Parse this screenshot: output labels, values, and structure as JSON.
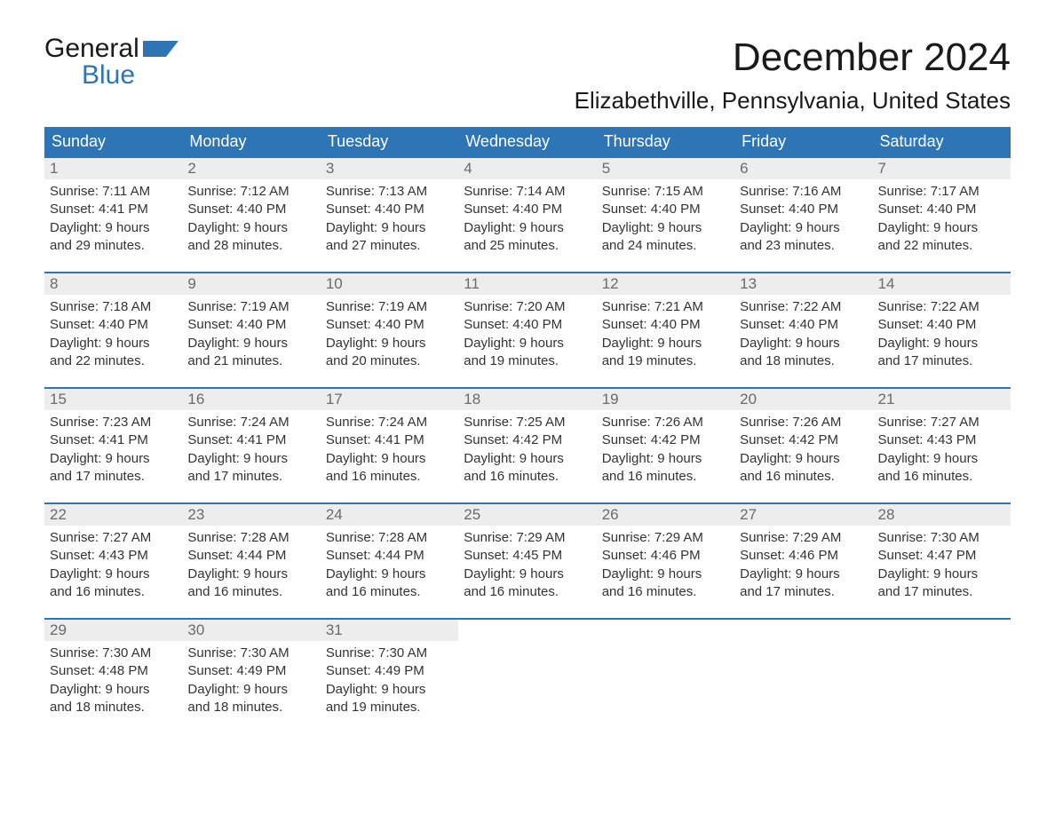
{
  "brand": {
    "word1": "General",
    "word2": "Blue",
    "flag_color": "#2e75b6"
  },
  "title": "December 2024",
  "location": "Elizabethville, Pennsylvania, United States",
  "colors": {
    "header_bg": "#2e75b6",
    "header_text": "#ffffff",
    "week_border": "#2e75b6",
    "daynum_bg": "#ededed",
    "daynum_text": "#6a6a6a",
    "body_text": "#333333",
    "page_bg": "#ffffff"
  },
  "typography": {
    "title_fontsize": 44,
    "location_fontsize": 26,
    "weekday_fontsize": 18,
    "daynum_fontsize": 17,
    "body_fontsize": 15
  },
  "weekdays": [
    "Sunday",
    "Monday",
    "Tuesday",
    "Wednesday",
    "Thursday",
    "Friday",
    "Saturday"
  ],
  "weeks": [
    [
      {
        "n": "1",
        "sunrise": "Sunrise: 7:11 AM",
        "sunset": "Sunset: 4:41 PM",
        "d1": "Daylight: 9 hours",
        "d2": "and 29 minutes."
      },
      {
        "n": "2",
        "sunrise": "Sunrise: 7:12 AM",
        "sunset": "Sunset: 4:40 PM",
        "d1": "Daylight: 9 hours",
        "d2": "and 28 minutes."
      },
      {
        "n": "3",
        "sunrise": "Sunrise: 7:13 AM",
        "sunset": "Sunset: 4:40 PM",
        "d1": "Daylight: 9 hours",
        "d2": "and 27 minutes."
      },
      {
        "n": "4",
        "sunrise": "Sunrise: 7:14 AM",
        "sunset": "Sunset: 4:40 PM",
        "d1": "Daylight: 9 hours",
        "d2": "and 25 minutes."
      },
      {
        "n": "5",
        "sunrise": "Sunrise: 7:15 AM",
        "sunset": "Sunset: 4:40 PM",
        "d1": "Daylight: 9 hours",
        "d2": "and 24 minutes."
      },
      {
        "n": "6",
        "sunrise": "Sunrise: 7:16 AM",
        "sunset": "Sunset: 4:40 PM",
        "d1": "Daylight: 9 hours",
        "d2": "and 23 minutes."
      },
      {
        "n": "7",
        "sunrise": "Sunrise: 7:17 AM",
        "sunset": "Sunset: 4:40 PM",
        "d1": "Daylight: 9 hours",
        "d2": "and 22 minutes."
      }
    ],
    [
      {
        "n": "8",
        "sunrise": "Sunrise: 7:18 AM",
        "sunset": "Sunset: 4:40 PM",
        "d1": "Daylight: 9 hours",
        "d2": "and 22 minutes."
      },
      {
        "n": "9",
        "sunrise": "Sunrise: 7:19 AM",
        "sunset": "Sunset: 4:40 PM",
        "d1": "Daylight: 9 hours",
        "d2": "and 21 minutes."
      },
      {
        "n": "10",
        "sunrise": "Sunrise: 7:19 AM",
        "sunset": "Sunset: 4:40 PM",
        "d1": "Daylight: 9 hours",
        "d2": "and 20 minutes."
      },
      {
        "n": "11",
        "sunrise": "Sunrise: 7:20 AM",
        "sunset": "Sunset: 4:40 PM",
        "d1": "Daylight: 9 hours",
        "d2": "and 19 minutes."
      },
      {
        "n": "12",
        "sunrise": "Sunrise: 7:21 AM",
        "sunset": "Sunset: 4:40 PM",
        "d1": "Daylight: 9 hours",
        "d2": "and 19 minutes."
      },
      {
        "n": "13",
        "sunrise": "Sunrise: 7:22 AM",
        "sunset": "Sunset: 4:40 PM",
        "d1": "Daylight: 9 hours",
        "d2": "and 18 minutes."
      },
      {
        "n": "14",
        "sunrise": "Sunrise: 7:22 AM",
        "sunset": "Sunset: 4:40 PM",
        "d1": "Daylight: 9 hours",
        "d2": "and 17 minutes."
      }
    ],
    [
      {
        "n": "15",
        "sunrise": "Sunrise: 7:23 AM",
        "sunset": "Sunset: 4:41 PM",
        "d1": "Daylight: 9 hours",
        "d2": "and 17 minutes."
      },
      {
        "n": "16",
        "sunrise": "Sunrise: 7:24 AM",
        "sunset": "Sunset: 4:41 PM",
        "d1": "Daylight: 9 hours",
        "d2": "and 17 minutes."
      },
      {
        "n": "17",
        "sunrise": "Sunrise: 7:24 AM",
        "sunset": "Sunset: 4:41 PM",
        "d1": "Daylight: 9 hours",
        "d2": "and 16 minutes."
      },
      {
        "n": "18",
        "sunrise": "Sunrise: 7:25 AM",
        "sunset": "Sunset: 4:42 PM",
        "d1": "Daylight: 9 hours",
        "d2": "and 16 minutes."
      },
      {
        "n": "19",
        "sunrise": "Sunrise: 7:26 AM",
        "sunset": "Sunset: 4:42 PM",
        "d1": "Daylight: 9 hours",
        "d2": "and 16 minutes."
      },
      {
        "n": "20",
        "sunrise": "Sunrise: 7:26 AM",
        "sunset": "Sunset: 4:42 PM",
        "d1": "Daylight: 9 hours",
        "d2": "and 16 minutes."
      },
      {
        "n": "21",
        "sunrise": "Sunrise: 7:27 AM",
        "sunset": "Sunset: 4:43 PM",
        "d1": "Daylight: 9 hours",
        "d2": "and 16 minutes."
      }
    ],
    [
      {
        "n": "22",
        "sunrise": "Sunrise: 7:27 AM",
        "sunset": "Sunset: 4:43 PM",
        "d1": "Daylight: 9 hours",
        "d2": "and 16 minutes."
      },
      {
        "n": "23",
        "sunrise": "Sunrise: 7:28 AM",
        "sunset": "Sunset: 4:44 PM",
        "d1": "Daylight: 9 hours",
        "d2": "and 16 minutes."
      },
      {
        "n": "24",
        "sunrise": "Sunrise: 7:28 AM",
        "sunset": "Sunset: 4:44 PM",
        "d1": "Daylight: 9 hours",
        "d2": "and 16 minutes."
      },
      {
        "n": "25",
        "sunrise": "Sunrise: 7:29 AM",
        "sunset": "Sunset: 4:45 PM",
        "d1": "Daylight: 9 hours",
        "d2": "and 16 minutes."
      },
      {
        "n": "26",
        "sunrise": "Sunrise: 7:29 AM",
        "sunset": "Sunset: 4:46 PM",
        "d1": "Daylight: 9 hours",
        "d2": "and 16 minutes."
      },
      {
        "n": "27",
        "sunrise": "Sunrise: 7:29 AM",
        "sunset": "Sunset: 4:46 PM",
        "d1": "Daylight: 9 hours",
        "d2": "and 17 minutes."
      },
      {
        "n": "28",
        "sunrise": "Sunrise: 7:30 AM",
        "sunset": "Sunset: 4:47 PM",
        "d1": "Daylight: 9 hours",
        "d2": "and 17 minutes."
      }
    ],
    [
      {
        "n": "29",
        "sunrise": "Sunrise: 7:30 AM",
        "sunset": "Sunset: 4:48 PM",
        "d1": "Daylight: 9 hours",
        "d2": "and 18 minutes."
      },
      {
        "n": "30",
        "sunrise": "Sunrise: 7:30 AM",
        "sunset": "Sunset: 4:49 PM",
        "d1": "Daylight: 9 hours",
        "d2": "and 18 minutes."
      },
      {
        "n": "31",
        "sunrise": "Sunrise: 7:30 AM",
        "sunset": "Sunset: 4:49 PM",
        "d1": "Daylight: 9 hours",
        "d2": "and 19 minutes."
      },
      {
        "empty": true
      },
      {
        "empty": true
      },
      {
        "empty": true
      },
      {
        "empty": true
      }
    ]
  ]
}
